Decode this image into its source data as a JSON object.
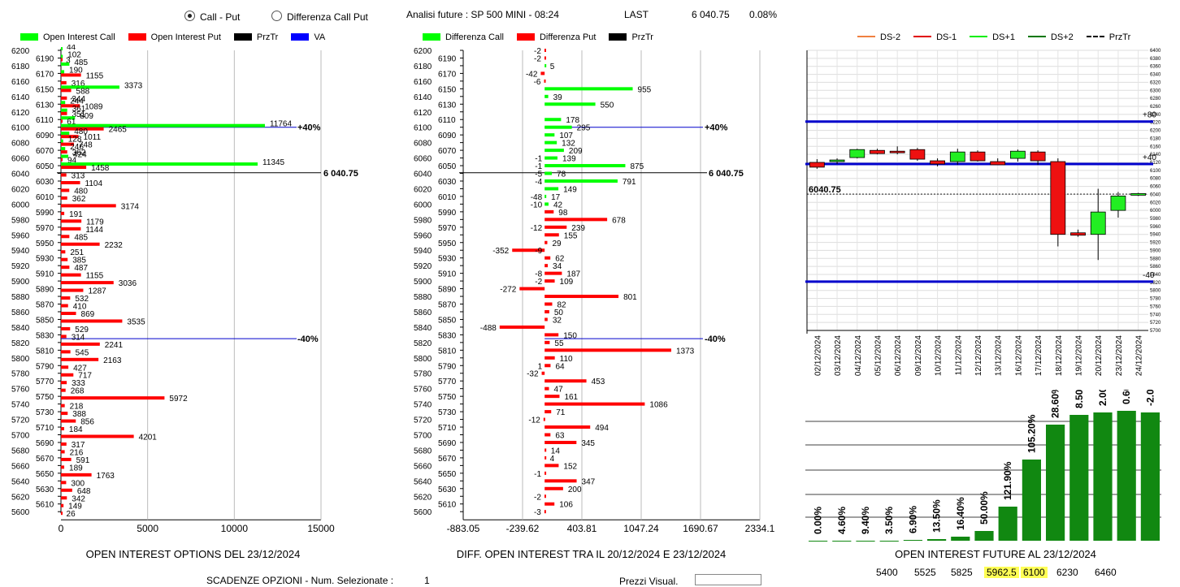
{
  "header": {
    "radio_callput": "Call - Put",
    "radio_diff": "Differenza Call Put",
    "analysis": "Analisi future : SP 500 MINI - 08:24",
    "last_label": "LAST",
    "last_value": "6 040.75",
    "last_change": "0.08%"
  },
  "legend1": [
    {
      "label": "Open Interest Call",
      "color": "#00ff00"
    },
    {
      "label": "Open Interest Put",
      "color": "#ff0000"
    },
    {
      "label": "PrzTr",
      "color": "#000000"
    },
    {
      "label": "VA",
      "color": "#0000ff"
    }
  ],
  "legend2": [
    {
      "label": "Differenza Call",
      "color": "#00ff00"
    },
    {
      "label": "Differenza Put",
      "color": "#ff0000"
    },
    {
      "label": "PrzTr",
      "color": "#000000"
    }
  ],
  "legend3": [
    {
      "label": "DS-2",
      "color": "#f08040",
      "style": "solid"
    },
    {
      "label": "DS-1",
      "color": "#e00000",
      "style": "solid"
    },
    {
      "label": "DS+1",
      "color": "#00ee00",
      "style": "solid"
    },
    {
      "label": "DS+2",
      "color": "#007700",
      "style": "solid"
    },
    {
      "label": "PrzTr",
      "color": "#000000",
      "style": "dashed"
    }
  ],
  "captions": {
    "oi_options": "OPEN INTEREST OPTIONS DEL 23/12/2024",
    "diff_oi": "DIFF. OPEN INTEREST TRA IL 20/12/2024 E 23/12/2024",
    "oi_future": "OPEN INTEREST FUTURE AL 23/12/2024"
  },
  "footer": {
    "scadenze": "SCADENZE OPZIONI - Num. Selezionate :",
    "num_selected": "1",
    "right_label": "Prezzi Visual.",
    "strikes": [
      "5400",
      "5525",
      "5825",
      "5962.5",
      "6100",
      "6230",
      "6460"
    ],
    "highlighted": [
      "5962.5",
      "6100"
    ]
  },
  "chart_data": [
    {
      "type": "bar",
      "orientation": "horizontal",
      "title": "OPEN INTEREST OPTIONS DEL 23/12/2024",
      "strikes": [
        6200,
        6190,
        6180,
        6170,
        6160,
        6150,
        6140,
        6130,
        6120,
        6110,
        6100,
        6090,
        6080,
        6070,
        6060,
        6050,
        6040,
        6030,
        6020,
        6010,
        6000,
        5990,
        5980,
        5970,
        5960,
        5950,
        5940,
        5930,
        5920,
        5910,
        5900,
        5890,
        5880,
        5870,
        5860,
        5850,
        5840,
        5830,
        5820,
        5810,
        5800,
        5790,
        5780,
        5770,
        5760,
        5750,
        5740,
        5730,
        5720,
        5710,
        5700,
        5690,
        5680,
        5670,
        5660,
        5650,
        5640,
        5630,
        5620,
        5610,
        5600
      ],
      "xlim": [
        0,
        15000
      ],
      "xticks": [
        "0",
        "5000",
        "10000",
        "15000"
      ],
      "series": [
        {
          "name": "Open Interest Call",
          "color": "#00ff00",
          "values": [
            44,
            102,
            485,
            190,
            0,
            3373,
            0,
            244,
            361,
            809,
            11764,
            480,
            128,
            246,
            424,
            11345,
            0,
            0,
            0,
            0,
            0,
            0,
            0,
            0,
            0,
            0,
            0,
            0,
            0,
            0,
            0,
            0,
            0,
            0,
            0,
            0,
            0,
            0,
            0,
            0,
            0,
            0,
            0,
            0,
            0,
            0,
            0,
            0,
            0,
            0,
            0,
            0,
            0,
            0,
            0,
            0,
            0,
            0,
            0,
            0,
            0
          ],
          "labels": [
            "44",
            "102",
            "485",
            "190",
            "",
            "3373",
            "",
            "244",
            "361",
            "809",
            "11764",
            "480",
            "128",
            "246",
            "424",
            "11345",
            "",
            "",
            "",
            "",
            "",
            "",
            "",
            "",
            "",
            "",
            "",
            "",
            "",
            "",
            "",
            "",
            "",
            "",
            "",
            "",
            "",
            "",
            "",
            "",
            "",
            "",
            "",
            "",
            "",
            "",
            "",
            "",
            "",
            "",
            "",
            "",
            "",
            "",
            "",
            "",
            "",
            "",
            "",
            "",
            ""
          ]
        },
        {
          "name": "Open Interest Put",
          "color": "#ff0000",
          "values": [
            0,
            3,
            0,
            1155,
            316,
            588,
            344,
            1089,
            351,
            61,
            2465,
            1011,
            748,
            362,
            94,
            1458,
            313,
            1104,
            480,
            362,
            3174,
            191,
            1179,
            1144,
            485,
            2232,
            251,
            385,
            487,
            1155,
            3036,
            1287,
            532,
            410,
            869,
            3535,
            529,
            314,
            2241,
            545,
            2163,
            427,
            717,
            333,
            268,
            5972,
            218,
            388,
            856,
            184,
            4201,
            317,
            216,
            591,
            189,
            1763,
            300,
            648,
            342,
            149,
            26
          ],
          "labels": [
            "",
            "3",
            "",
            "1155",
            "316",
            "588",
            "344",
            "1089",
            "351",
            "61",
            "2465",
            "1011",
            "748",
            "362",
            "94",
            "1458",
            "313",
            "1104",
            "480",
            "362",
            "3174",
            "191",
            "1179",
            "1144",
            "485",
            "2232",
            "251",
            "385",
            "487",
            "1155",
            "3036",
            "1287",
            "532",
            "410",
            "869",
            "3535",
            "529",
            "314",
            "2241",
            "545",
            "2163",
            "427",
            "717",
            "333",
            "268",
            "5972",
            "218",
            "388",
            "856",
            "184",
            "4201",
            "317",
            "216",
            "591",
            "189",
            "1763",
            "300",
            "648",
            "342",
            "149",
            "26"
          ]
        }
      ],
      "przTr": "6 040.75",
      "va_upper_label": "+40%",
      "va_lower_label": "-40%",
      "va_upper_strike": 6100,
      "va_lower_strike": 5825,
      "przTr_strike": 6040.75
    },
    {
      "type": "bar",
      "orientation": "horizontal",
      "title": "DIFF. OPEN INTEREST TRA IL 20/12/2024 E 23/12/2024",
      "xlim": [
        -883.05,
        2334.1
      ],
      "xticks": [
        "-883.05",
        "-239.62",
        "403.81",
        "1047.24",
        "1690.67",
        "2334.1"
      ],
      "values": [
        -2,
        -2,
        5,
        -42,
        -6,
        955,
        39,
        550,
        0,
        178,
        295,
        107,
        132,
        209,
        139,
        875,
        78,
        791,
        149,
        17,
        42,
        98,
        678,
        239,
        155,
        29,
        -352,
        62,
        34,
        187,
        109,
        -272,
        801,
        82,
        50,
        32,
        -488,
        150,
        55,
        1373,
        110,
        64,
        -32,
        453,
        47,
        161,
        1086,
        71,
        -12,
        494,
        63,
        345,
        14,
        4,
        152,
        -1,
        347,
        200,
        -2,
        106,
        -3
      ],
      "neg_values": [
        0,
        0,
        0,
        0,
        0,
        0,
        0,
        0,
        0,
        0,
        0,
        0,
        0,
        0,
        -1,
        -1,
        -5,
        -4,
        0,
        -48,
        -10,
        0,
        0,
        -12,
        0,
        0,
        -9,
        0,
        0,
        -8,
        -2,
        0,
        0,
        0,
        0,
        0,
        0,
        0,
        0,
        0,
        0,
        1,
        0,
        0,
        0,
        0,
        0,
        0,
        0,
        0,
        0,
        0,
        0,
        0,
        0,
        0,
        0,
        0,
        0,
        0,
        0
      ],
      "przTr": "6 040.75",
      "va_upper_label": "+40%",
      "va_lower_label": "-40%"
    },
    {
      "type": "candlestick",
      "dates": [
        "02/12/2024",
        "03/12/2024",
        "04/12/2024",
        "05/12/2024",
        "06/12/2024",
        "09/12/2024",
        "10/12/2024",
        "11/12/2024",
        "12/12/2024",
        "13/12/2024",
        "16/12/2024",
        "17/12/2024",
        "18/12/2024",
        "19/12/2024",
        "20/12/2024",
        "23/12/2024",
        "24/12/2024"
      ],
      "ohlc": [
        [
          6120,
          6128,
          6104,
          6108
        ],
        [
          6124,
          6130,
          6116,
          6126
        ],
        [
          6132,
          6154,
          6130,
          6152
        ],
        [
          6150,
          6154,
          6140,
          6142
        ],
        [
          6148,
          6160,
          6140,
          6146
        ],
        [
          6152,
          6156,
          6124,
          6128
        ],
        [
          6124,
          6130,
          6110,
          6116
        ],
        [
          6122,
          6154,
          6114,
          6146
        ],
        [
          6146,
          6150,
          6122,
          6124
        ],
        [
          6122,
          6130,
          6116,
          6114
        ],
        [
          6130,
          6152,
          6122,
          6148
        ],
        [
          6146,
          6150,
          6114,
          6124
        ],
        [
          6122,
          6130,
          5910,
          5940
        ],
        [
          5944,
          5952,
          5934,
          5938
        ],
        [
          5940,
          6054,
          5876,
          5996
        ],
        [
          6000,
          6046,
          5982,
          6036
        ],
        [
          6040,
          6044,
          6036,
          6042
        ]
      ],
      "ylim": [
        5700,
        6400
      ],
      "yticks": [
        6400,
        6380,
        6360,
        6340,
        6320,
        6300,
        6280,
        6260,
        6240,
        6220,
        6200,
        6180,
        6160,
        6140,
        6120,
        6100,
        6080,
        6060,
        6040,
        6020,
        6000,
        5980,
        5960,
        5940,
        5920,
        5900,
        5880,
        5860,
        5840,
        5820,
        5800,
        5780,
        5760,
        5740,
        5720,
        5700
      ],
      "lines": [
        {
          "label": "+80",
          "value": 6222
        },
        {
          "label": "+40",
          "value": 6116
        },
        {
          "label": "-40",
          "value": 5822
        }
      ],
      "przTr": "6040.75"
    },
    {
      "type": "bar",
      "title": "OPEN INTEREST FUTURE AL 23/12/2024",
      "values": [
        0.0,
        4.6,
        9.4,
        3.5,
        6.9,
        13.5,
        16.4,
        50.0,
        121.9,
        105.2,
        28.6,
        8.5,
        2.0,
        0.6,
        -2.0
      ],
      "labels": [
        "0.00%",
        "4.60%",
        "9.40%",
        "3.50%",
        "6.90%",
        "13.50%",
        "16.40%",
        "50.00%",
        "121.90%",
        "105.20%",
        "28.60%",
        "8.50%",
        "2.00%",
        "0.60%",
        "-2.00%"
      ],
      "heights": [
        0,
        0,
        0,
        0,
        1,
        2,
        5,
        12,
        42,
        100,
        143,
        155,
        158,
        160,
        158
      ]
    }
  ]
}
